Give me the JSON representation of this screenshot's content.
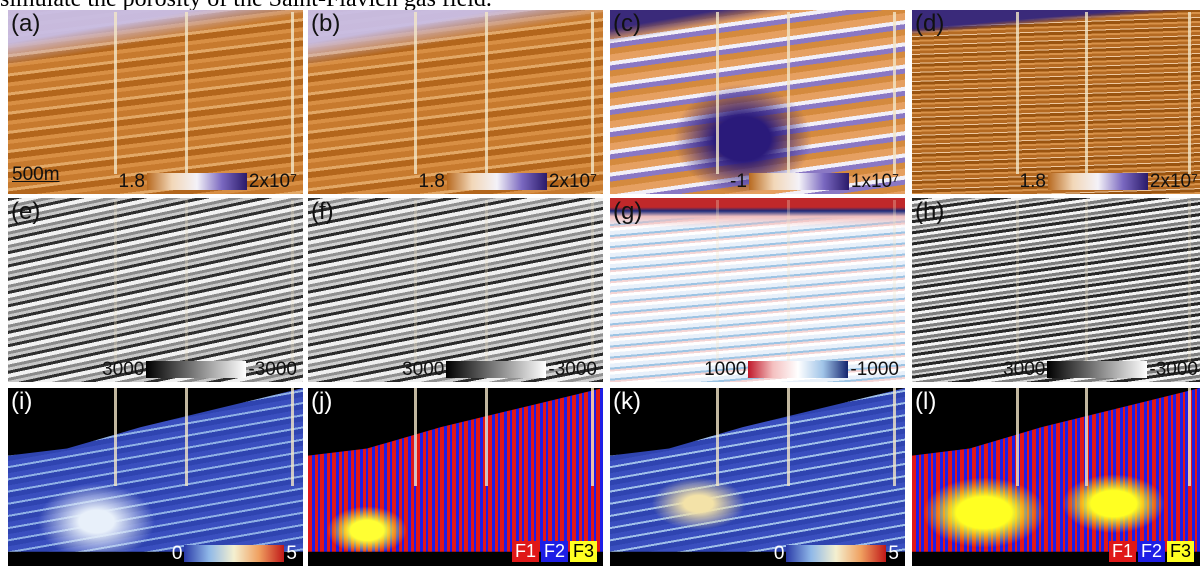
{
  "caption": "simulate the porosity of the Saint-Flavien gas field.",
  "panels": [
    {
      "label": "(a)",
      "scale_bar": "500m",
      "colorbar": [
        "1.8",
        "2x10⁷"
      ]
    },
    {
      "label": "(b)",
      "colorbar": [
        "1.8",
        "2x10⁷"
      ]
    },
    {
      "label": "(c)",
      "colorbar": [
        "-1",
        "1x10⁷"
      ]
    },
    {
      "label": "(d)",
      "colorbar": [
        "1.8",
        "2x10⁷"
      ]
    },
    {
      "label": "(e)",
      "colorbar": [
        "3000",
        "-3000"
      ]
    },
    {
      "label": "(f)",
      "colorbar": [
        "3000",
        "-3000"
      ]
    },
    {
      "label": "(g)",
      "colorbar": [
        "1000",
        "-1000"
      ]
    },
    {
      "label": "(h)",
      "colorbar": [
        "3000",
        "-3000"
      ]
    },
    {
      "label": "(i)",
      "colorbar": [
        "0",
        "5"
      ]
    },
    {
      "label": "(j)",
      "legend": [
        "F1",
        "F2",
        "F3"
      ]
    },
    {
      "label": "(k)",
      "colorbar": [
        "0",
        "5"
      ]
    },
    {
      "label": "(l)",
      "legend": [
        "F1",
        "F2",
        "F3"
      ]
    }
  ]
}
